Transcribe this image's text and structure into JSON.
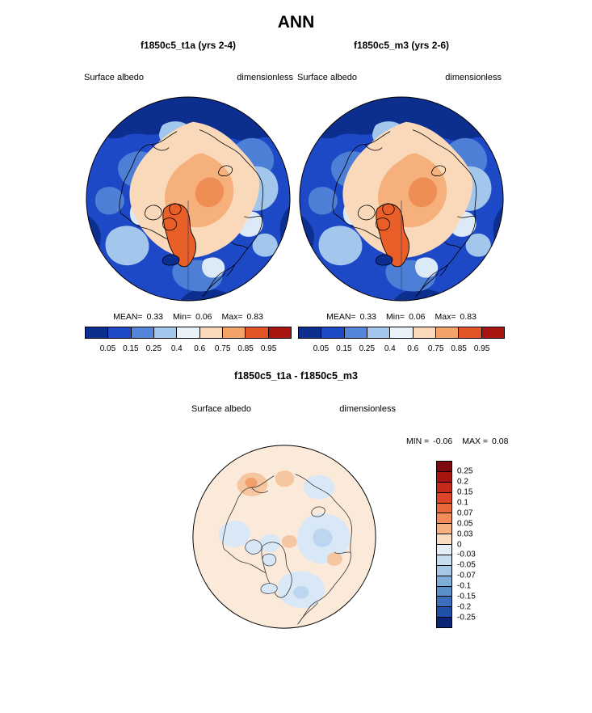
{
  "header": {
    "title": "ANN"
  },
  "panels": [
    {
      "title": "f1850c5_t1a (yrs 2-4)",
      "field": "Surface albedo",
      "units": "dimensionless",
      "stats": {
        "mean_label": "MEAN=",
        "mean": "0.33",
        "min_label": "Min=",
        "min": "0.06",
        "max_label": "Max=",
        "max": "0.83"
      }
    },
    {
      "title": "f1850c5_m3 (yrs 2-6)",
      "field": "Surface albedo",
      "units": "dimensionless",
      "stats": {
        "mean_label": "MEAN=",
        "mean": "0.33",
        "min_label": "Min=",
        "min": "0.06",
        "max_label": "Max=",
        "max": "0.83"
      }
    }
  ],
  "albedo_colorbar": {
    "ticks": [
      "0.05",
      "0.15",
      "0.25",
      "0.4",
      "0.6",
      "0.75",
      "0.85",
      "0.95"
    ],
    "colors": [
      "#0B2E8F",
      "#1E49C6",
      "#5585D8",
      "#A3C6EC",
      "#E8F0F8",
      "#F9D9BA",
      "#F3A268",
      "#E35427",
      "#A81410"
    ]
  },
  "diff": {
    "title": "f1850c5_t1a - f1850c5_m3",
    "field": "Surface albedo",
    "units": "dimensionless",
    "range": {
      "min_label": "MIN =",
      "min": "-0.06",
      "max_label": "MAX =",
      "max": "0.08"
    },
    "colorbar": {
      "ticks": [
        "0.25",
        "0.2",
        "0.15",
        "0.1",
        "0.07",
        "0.05",
        "0.03",
        "0",
        "-0.03",
        "-0.05",
        "-0.07",
        "-0.1",
        "-0.15",
        "-0.2",
        "-0.25"
      ],
      "colors": [
        "#7E0A0F",
        "#A81410",
        "#C62A1C",
        "#DC4528",
        "#E9693C",
        "#F28D5A",
        "#F7B181",
        "#FBDCC1",
        "#E3EEF8",
        "#C7DCEF",
        "#A6C8E6",
        "#7FADD9",
        "#5B8FCB",
        "#3A6FBB",
        "#2150A8",
        "#0A2573"
      ]
    }
  },
  "chart_data": [
    {
      "type": "heatmap",
      "subtype": "north-polar-stereographic-map",
      "title": "f1850c5_t1a (yrs 2-4)",
      "season": "ANN",
      "variable": "Surface albedo",
      "units": "dimensionless",
      "stats": {
        "mean": 0.33,
        "min": 0.06,
        "max": 0.83
      },
      "contour_levels": [
        0.05,
        0.15,
        0.25,
        0.4,
        0.6,
        0.75,
        0.85,
        0.95
      ],
      "colormap": [
        "#0B2E8F",
        "#1E49C6",
        "#5585D8",
        "#A3C6EC",
        "#E8F0F8",
        "#F9D9BA",
        "#F3A268",
        "#E35427",
        "#A81410"
      ],
      "legend_position": "bottom"
    },
    {
      "type": "heatmap",
      "subtype": "north-polar-stereographic-map",
      "title": "f1850c5_m3 (yrs 2-6)",
      "season": "ANN",
      "variable": "Surface albedo",
      "units": "dimensionless",
      "stats": {
        "mean": 0.33,
        "min": 0.06,
        "max": 0.83
      },
      "contour_levels": [
        0.05,
        0.15,
        0.25,
        0.4,
        0.6,
        0.75,
        0.85,
        0.95
      ],
      "colormap": [
        "#0B2E8F",
        "#1E49C6",
        "#5585D8",
        "#A3C6EC",
        "#E8F0F8",
        "#F9D9BA",
        "#F3A268",
        "#E35427",
        "#A81410"
      ],
      "legend_position": "bottom"
    },
    {
      "type": "heatmap",
      "subtype": "north-polar-stereographic-map",
      "title": "f1850c5_t1a - f1850c5_m3",
      "season": "ANN",
      "variable": "Surface albedo",
      "units": "dimensionless",
      "stats": {
        "min": -0.06,
        "max": 0.08
      },
      "contour_levels": [
        -0.25,
        -0.2,
        -0.15,
        -0.1,
        -0.07,
        -0.05,
        -0.03,
        0,
        0.03,
        0.05,
        0.07,
        0.1,
        0.15,
        0.2,
        0.25
      ],
      "colormap": [
        "#0A2573",
        "#2150A8",
        "#3A6FBB",
        "#5B8FCB",
        "#7FADD9",
        "#A6C8E6",
        "#C7DCEF",
        "#E3EEF8",
        "#FBDCC1",
        "#F7B181",
        "#F28D5A",
        "#E9693C",
        "#DC4528",
        "#C62A1C",
        "#A81410",
        "#7E0A0F"
      ],
      "legend_position": "right"
    }
  ]
}
